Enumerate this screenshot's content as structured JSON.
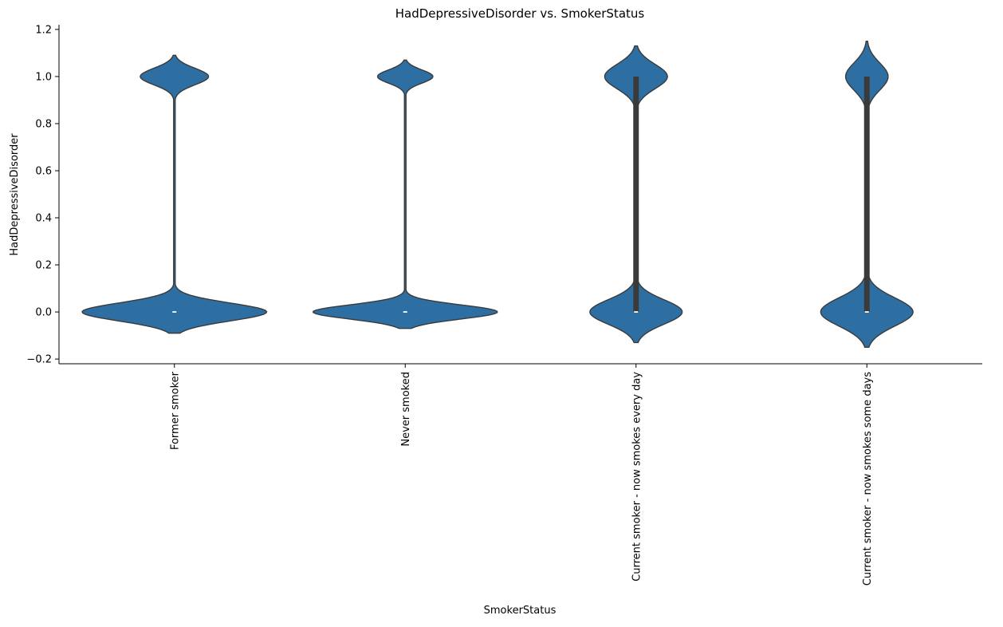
{
  "chart_data": {
    "type": "violin",
    "title": "HadDepressiveDisorder vs. SmokerStatus",
    "xlabel": "SmokerStatus",
    "ylabel": "HadDepressiveDisorder",
    "ylim": [
      -0.22,
      1.22
    ],
    "yticks": [
      {
        "value": -0.2,
        "label": "−0.2"
      },
      {
        "value": 0.0,
        "label": "0.0"
      },
      {
        "value": 0.2,
        "label": "0.2"
      },
      {
        "value": 0.4,
        "label": "0.4"
      },
      {
        "value": 0.6,
        "label": "0.6"
      },
      {
        "value": 0.8,
        "label": "0.8"
      },
      {
        "value": 1.0,
        "label": "1.0"
      },
      {
        "value": 1.2,
        "label": "1.2"
      }
    ],
    "categories": [
      "Former smoker",
      "Never smoked",
      "Current smoker - now smokes every day",
      "Current smoker - now smokes some days"
    ],
    "grid": false,
    "violin_color": "#2e6fa3",
    "box_color": "#3a3a3a",
    "violins": [
      {
        "category": "Former smoker",
        "min": -0.09,
        "max": 1.09,
        "width_at_0": 1.0,
        "width_at_1": 0.37,
        "spread_0": 0.038,
        "spread_1": 0.035,
        "q1": 0.0,
        "median": 0.0,
        "q3": 0.0
      },
      {
        "category": "Never smoked",
        "min": -0.07,
        "max": 1.07,
        "width_at_0": 1.0,
        "width_at_1": 0.3,
        "spread_0": 0.03,
        "spread_1": 0.028,
        "q1": 0.0,
        "median": 0.0,
        "q3": 0.0
      },
      {
        "category": "Current smoker - now smokes every day",
        "min": -0.13,
        "max": 1.13,
        "width_at_0": 0.5,
        "width_at_1": 0.34,
        "spread_0": 0.052,
        "spread_1": 0.052,
        "q1": 0.0,
        "median": 0.0,
        "q3": 1.0
      },
      {
        "category": "Current smoker - now smokes some days",
        "min": -0.15,
        "max": 1.15,
        "width_at_0": 0.5,
        "width_at_1": 0.23,
        "spread_0": 0.06,
        "spread_1": 0.058,
        "q1": 0.0,
        "median": 0.0,
        "q3": 1.0
      }
    ]
  }
}
